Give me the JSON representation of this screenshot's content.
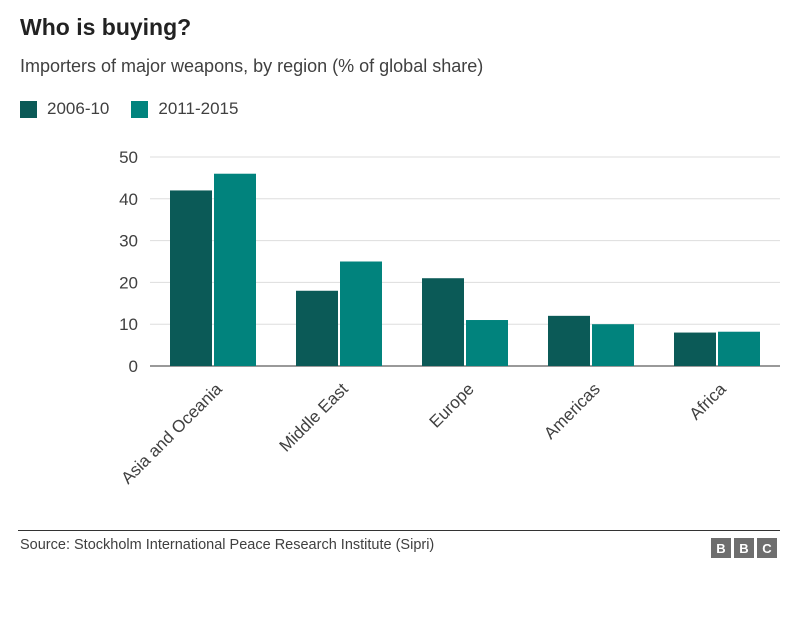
{
  "title": "Who is buying?",
  "subtitle": "Importers of major weapons, by region (% of global share)",
  "source": "Source: Stockholm International Peace Research Institute (Sipri)",
  "logo": [
    "B",
    "B",
    "C"
  ],
  "chart_data": {
    "type": "bar",
    "categories": [
      "Asia and Oceania",
      "Middle East",
      "Europe",
      "Americas",
      "Africa"
    ],
    "series": [
      {
        "name": "2006-10",
        "color": "#0b5a57",
        "values": [
          42,
          18,
          21,
          12,
          8
        ]
      },
      {
        "name": "2011-2015",
        "color": "#01837d",
        "values": [
          46,
          25,
          11,
          10,
          8.2
        ]
      }
    ],
    "ylim": [
      0,
      50
    ],
    "yticks": [
      0,
      10,
      20,
      30,
      40,
      50
    ],
    "grid": true,
    "legend": "top-left"
  }
}
